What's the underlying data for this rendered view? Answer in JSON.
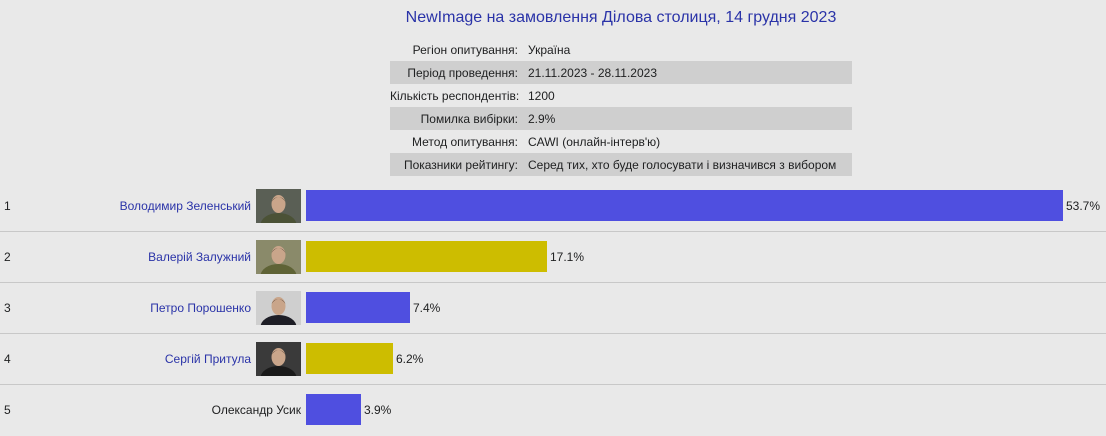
{
  "header": {
    "title": "NewImage на замовлення Ділова столиця, 14 грудня 2023"
  },
  "info": [
    {
      "key": "Регіон опитування:",
      "value": "Україна",
      "shaded": false
    },
    {
      "key": "Період проведення:",
      "value": "21.11.2023 - 28.11.2023",
      "shaded": true
    },
    {
      "key": "Кількість респондентів:",
      "value": "1200",
      "shaded": false
    },
    {
      "key": "Помилка вибірки:",
      "value": "2.9%",
      "shaded": true
    },
    {
      "key": "Метод опитування:",
      "value": "CAWI (онлайн-інтерв'ю)",
      "shaded": false
    },
    {
      "key": "Показники рейтингу:",
      "value": "Серед тих, хто буде голосувати і визначився з вибором",
      "shaded": true
    }
  ],
  "chart_data": {
    "type": "bar",
    "orientation": "horizontal",
    "categories": [
      "Володимир Зеленський",
      "Валерій Залужний",
      "Петро Порошенко",
      "Сергій Притула",
      "Олександр Усик"
    ],
    "ranks": [
      "1",
      "2",
      "3",
      "4",
      "5"
    ],
    "values": [
      53.7,
      17.1,
      7.4,
      6.2,
      3.9
    ],
    "value_labels": [
      "53.7%",
      "17.1%",
      "7.4%",
      "6.2%",
      "3.9%"
    ],
    "bar_colors": [
      "#4f4fe0",
      "#cdbd00",
      "#4f4fe0",
      "#cdbd00",
      "#4f4fe0"
    ],
    "name_is_link": [
      true,
      true,
      true,
      true,
      false
    ],
    "has_photo": [
      true,
      true,
      true,
      true,
      false
    ],
    "xlim": [
      0,
      53.7
    ],
    "grid": false,
    "legend": "none"
  }
}
